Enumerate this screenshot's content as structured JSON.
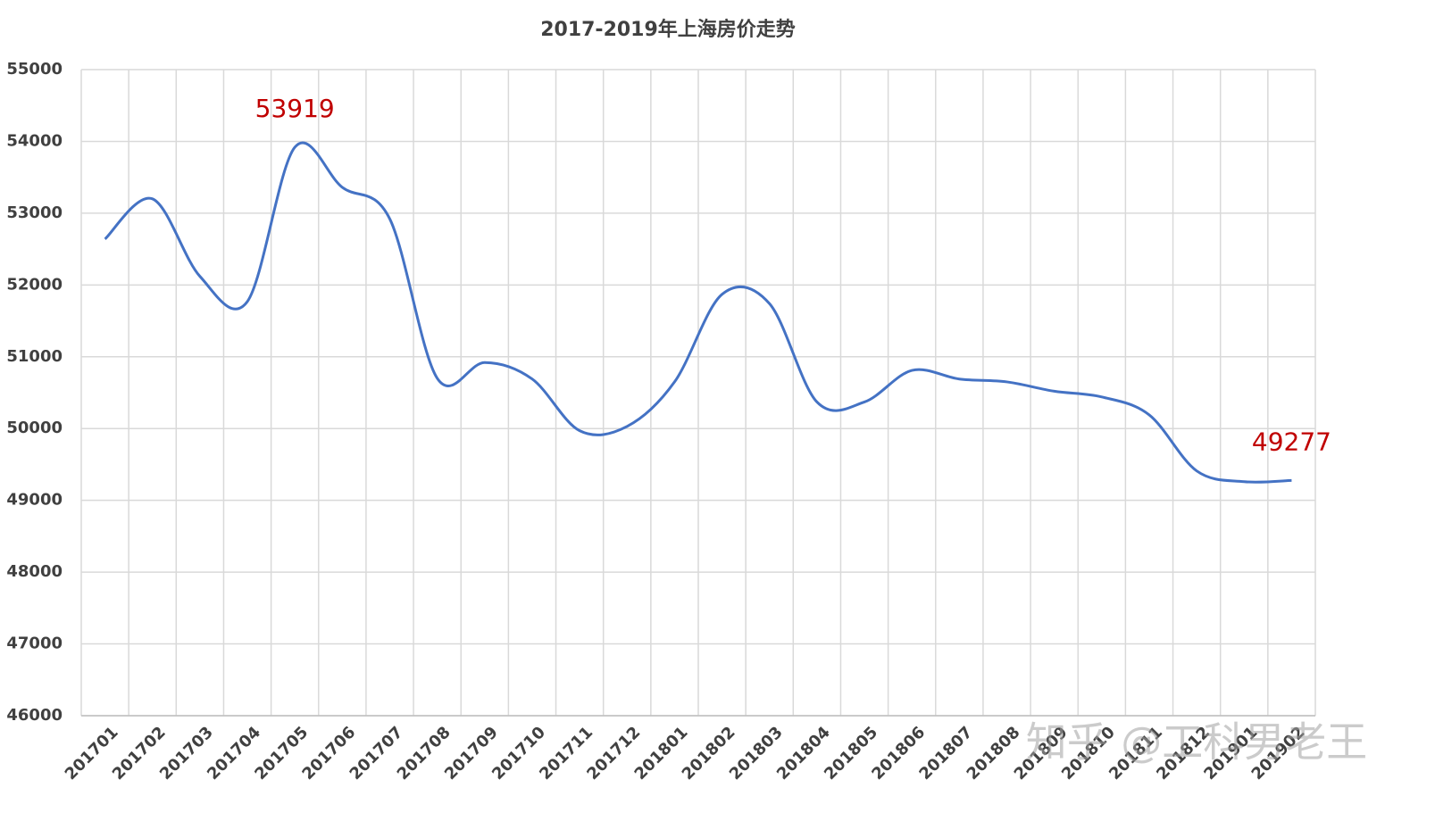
{
  "chart_data": {
    "type": "line",
    "title": "2017-2019年上海房价走势",
    "categories": [
      "201701",
      "201702",
      "201703",
      "201704",
      "201705",
      "201706",
      "201707",
      "201708",
      "201709",
      "201710",
      "201711",
      "201712",
      "201801",
      "201802",
      "201803",
      "201804",
      "201805",
      "201806",
      "201807",
      "201808",
      "201809",
      "201810",
      "201811",
      "201812",
      "201901",
      "201902"
    ],
    "series": [
      {
        "name": "上海房价",
        "color": "#4472c4",
        "values": [
          52640,
          53200,
          52120,
          51770,
          53919,
          53360,
          52920,
          50700,
          50920,
          50690,
          49970,
          50030,
          50650,
          51870,
          51740,
          50370,
          50370,
          50810,
          50690,
          50650,
          50520,
          50440,
          50190,
          49410,
          49260,
          49277
        ]
      }
    ],
    "labeled_indices": [
      4,
      25
    ],
    "label_color": "#c00000",
    "smooth": true,
    "ylim": [
      46000,
      55000
    ],
    "yticks": [
      46000,
      47000,
      48000,
      49000,
      50000,
      51000,
      52000,
      53000,
      54000,
      55000
    ],
    "grid": true,
    "legend": false,
    "watermark": "知乎 @工科男老王"
  }
}
